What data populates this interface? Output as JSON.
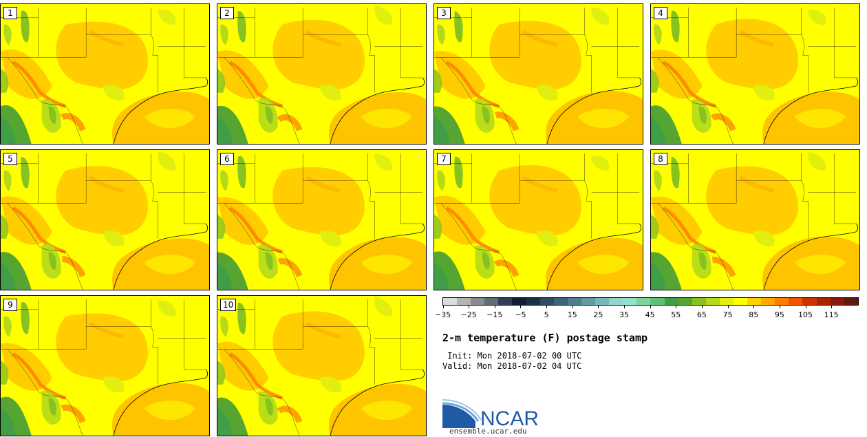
{
  "members": [
    "1",
    "2",
    "3",
    "4",
    "5",
    "6",
    "7",
    "8",
    "9",
    "10"
  ],
  "colorbar": {
    "colors": [
      "#dcdcdc",
      "#b4b4b4",
      "#8c8c8c",
      "#5f6d79",
      "#2f3e52",
      "#0f1e33",
      "#1b2f47",
      "#2d4d63",
      "#3d6478",
      "#4c7e8c",
      "#5e9ba3",
      "#77b7b5",
      "#95d4cc",
      "#8fe3c9",
      "#7fd49a",
      "#5fbf78",
      "#3f9e46",
      "#56a533",
      "#86c220",
      "#b4da18",
      "#e0ef10",
      "#ffff00",
      "#ffd000",
      "#ffa800",
      "#ff7e00",
      "#ef5500",
      "#cd3300",
      "#aa2200",
      "#8a1a10",
      "#5e1a10"
    ],
    "tick_labels": [
      "−35",
      "−25",
      "−15",
      "−5",
      "5",
      "15",
      "25",
      "35",
      "45",
      "55",
      "65",
      "75",
      "85",
      "95",
      "105",
      "115"
    ]
  },
  "title": "2-m temperature (F) postage stamp",
  "init_text": " Init: Mon 2018-07-02 00 UTC",
  "valid_text": "Valid: Mon 2018-07-02 04 UTC",
  "logo": {
    "text": "NCAR",
    "url": "ensemble.ucar.edu",
    "color": "#1f5aa6"
  }
}
